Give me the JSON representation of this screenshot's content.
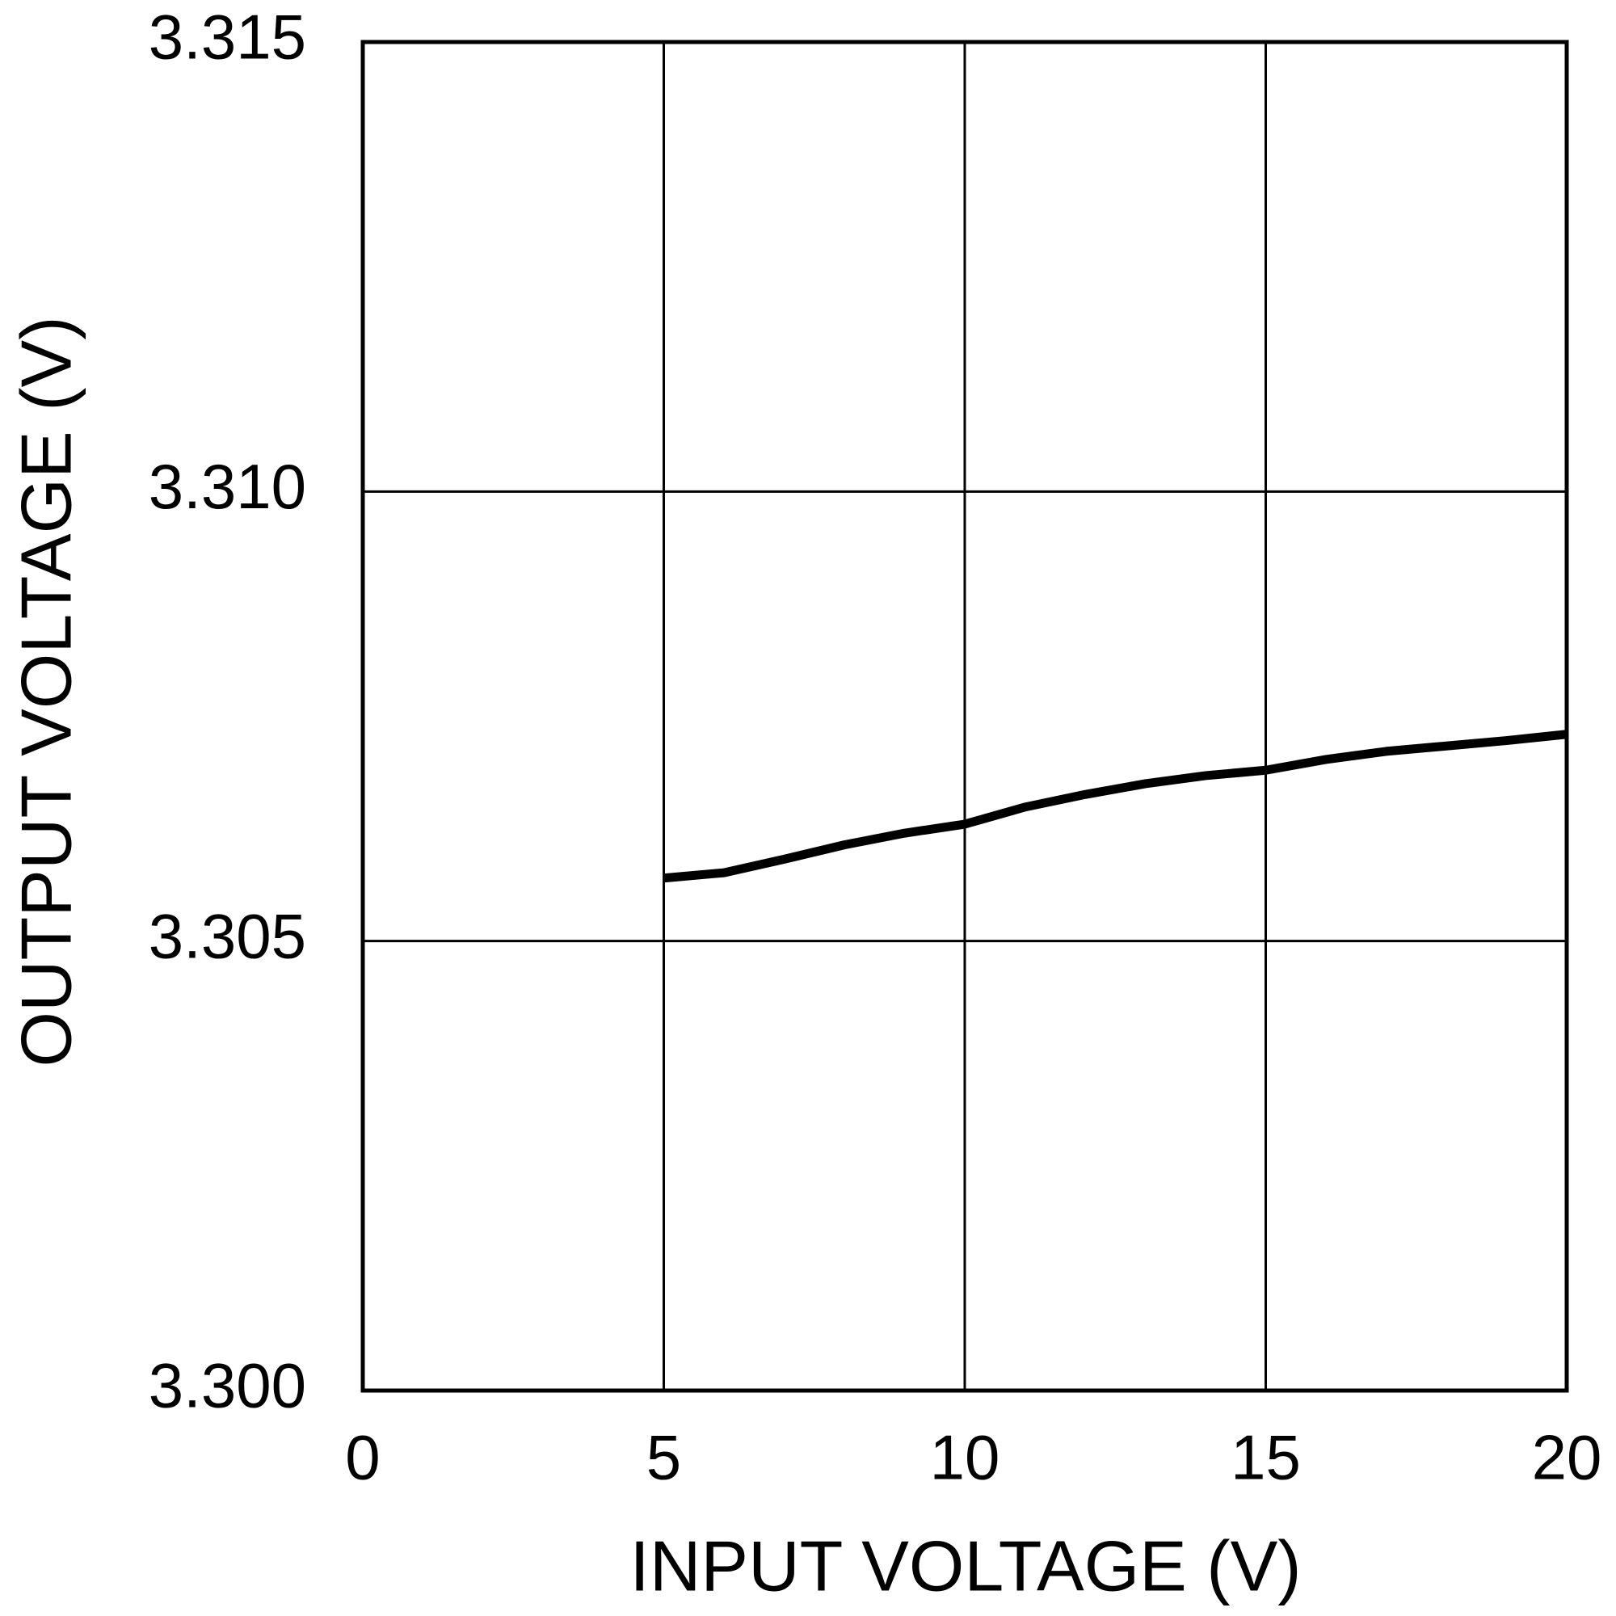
{
  "chart_data": {
    "type": "line",
    "x_label": "INPUT VOLTAGE (V)",
    "y_label": "OUTPUT VOLTAGE (V)",
    "x": [
      5,
      6,
      7,
      8,
      9,
      10,
      11,
      12,
      13,
      14,
      15,
      16,
      17,
      18,
      19,
      20
    ],
    "series": [
      {
        "color": "#000000",
        "values": [
          3.3057,
          3.30576,
          3.30591,
          3.30607,
          3.3062,
          3.3063,
          3.30649,
          3.30663,
          3.30675,
          3.30684,
          3.3069,
          3.30702,
          3.30711,
          3.30717,
          3.30723,
          3.3073
        ]
      }
    ],
    "xlim": [
      0,
      20
    ],
    "xticks": [
      0,
      5,
      10,
      15,
      20
    ],
    "ylim": [
      3.3,
      3.315
    ],
    "yticks": [
      {
        "value": 3.3,
        "label": "3.300"
      },
      3.305,
      {
        "value": 3.31,
        "label": "3.310"
      },
      3.315
    ],
    "grid": true
  }
}
